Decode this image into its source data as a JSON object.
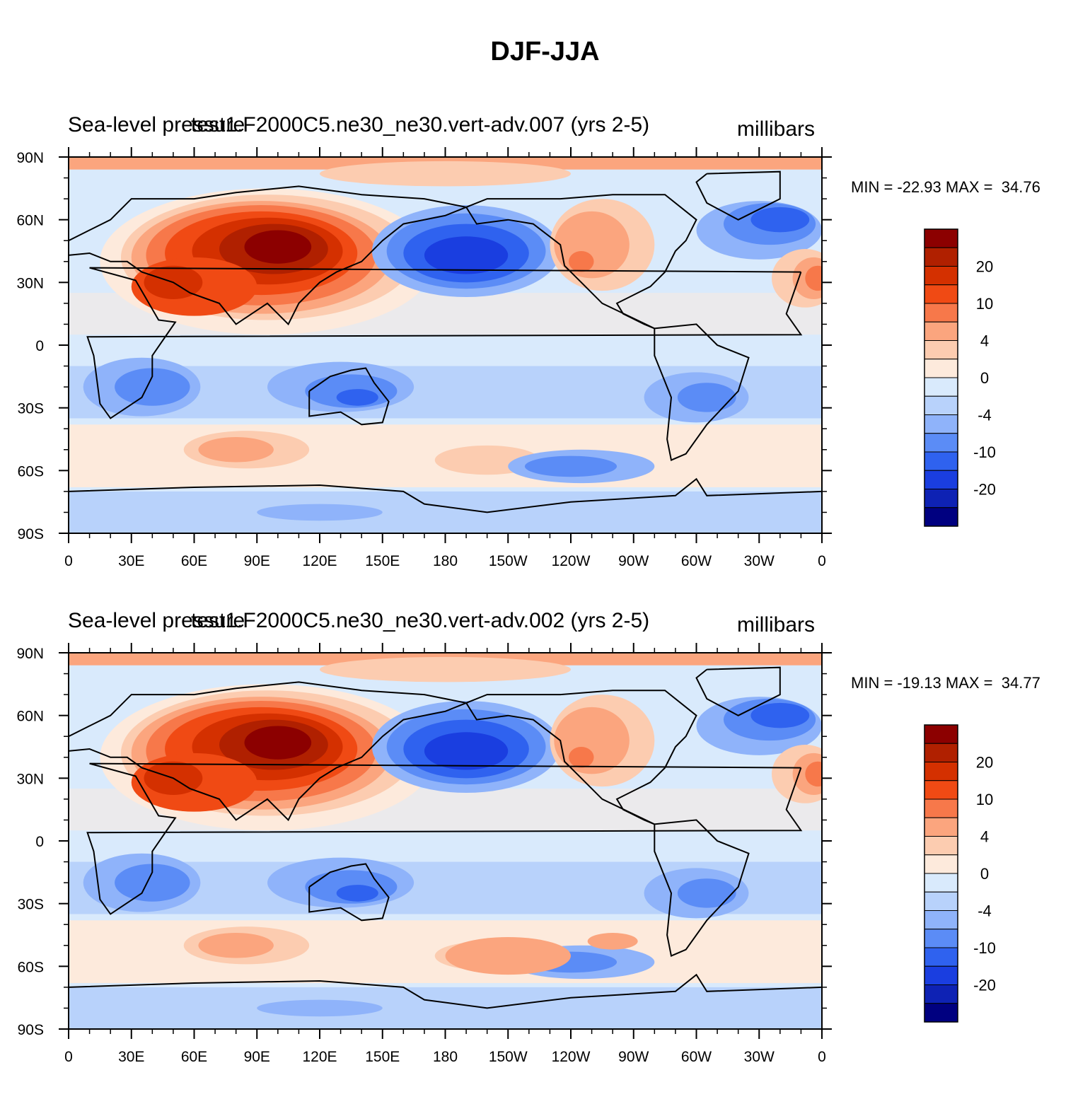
{
  "title": "DJF-JJA",
  "panels": [
    {
      "left_title": "Sea-level pressure",
      "center_title": "test1.F2000C5.ne30_ne30.vert-adv.007 (yrs 2-5)",
      "units": "millibars",
      "min_max": "MIN = -22.93 MAX =  34.76"
    },
    {
      "left_title": "Sea-level pressure",
      "center_title": "test1.F2000C5.ne30_ne30.vert-adv.002 (yrs 2-5)",
      "units": "millibars",
      "min_max": "MIN = -19.13 MAX =  34.77"
    }
  ],
  "map": {
    "lon_ticks": [
      "0",
      "30E",
      "60E",
      "90E",
      "120E",
      "150E",
      "180",
      "150W",
      "120W",
      "90W",
      "60W",
      "30W",
      "0"
    ],
    "lat_ticks": [
      "90N",
      "60N",
      "30N",
      "0",
      "30S",
      "60S",
      "90S"
    ]
  },
  "colorbar": {
    "labels": [
      "20",
      "10",
      "4",
      "0",
      "-4",
      "-10",
      "-20"
    ],
    "colors": [
      "#8c0000",
      "#b02000",
      "#d43000",
      "#f04a14",
      "#f7784a",
      "#fba57e",
      "#fcccb0",
      "#fdeadc",
      "#d9eafc",
      "#b8d2fb",
      "#8fb3fa",
      "#5b8cf6",
      "#2f62ef",
      "#1a3ee0",
      "#0e22b4",
      "#000080"
    ]
  },
  "colors": {
    "ocean_neutral": "#d9eafc",
    "high": "#f04a14",
    "low": "#2f62ef"
  }
}
